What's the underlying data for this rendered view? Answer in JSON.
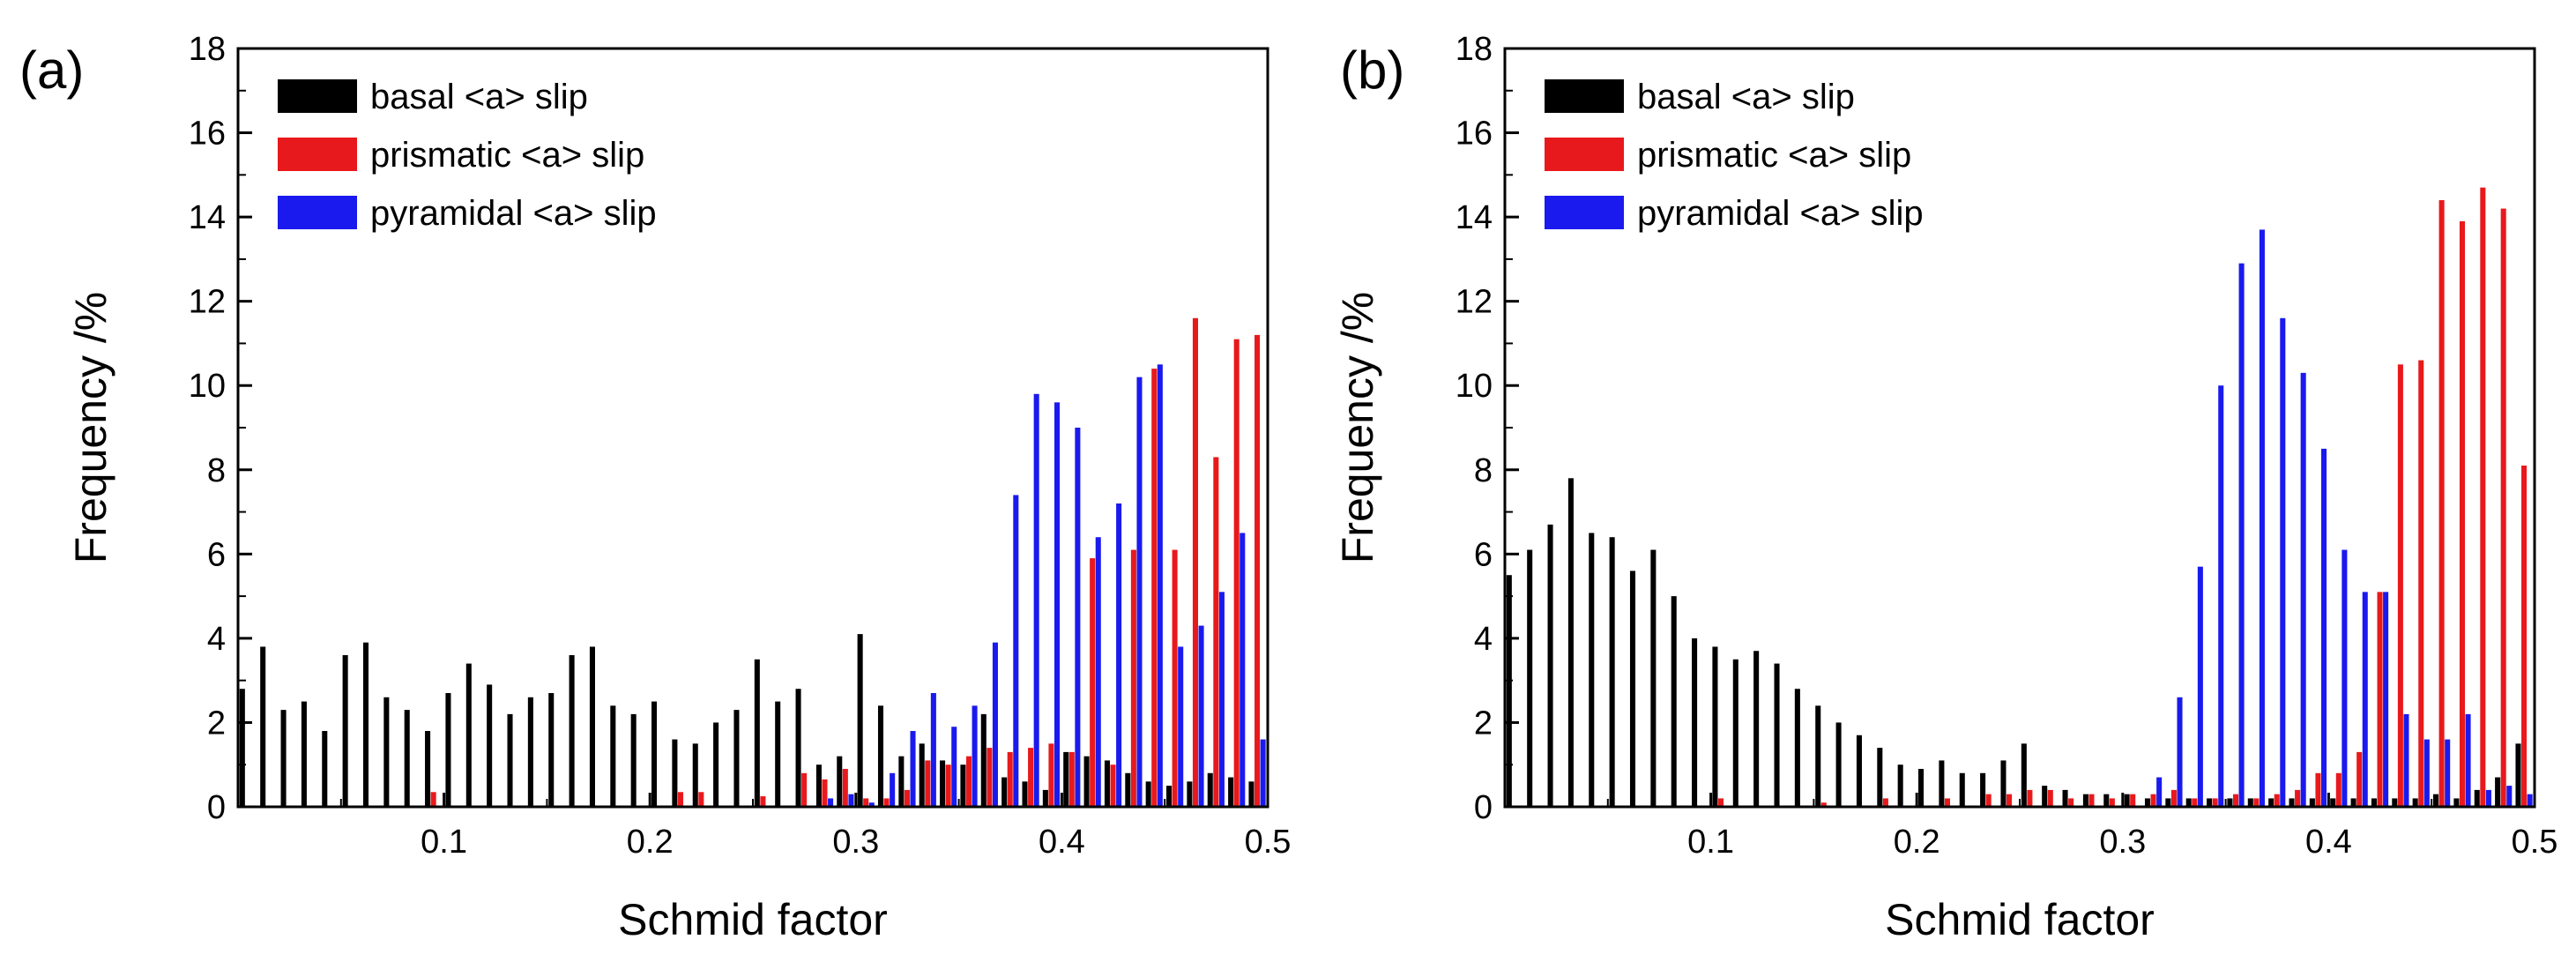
{
  "figure": {
    "panel_labels": [
      "(a)",
      "(b)"
    ]
  },
  "colors": {
    "basal": "#000000",
    "prismatic": "#e8191c",
    "pyramidal": "#1a1aee"
  },
  "chart_data": [
    {
      "type": "bar",
      "panel_label": "(a)",
      "xlabel": "Schmid factor",
      "ylabel": "Frequency /%",
      "xlim": [
        0.0,
        0.5
      ],
      "ylim": [
        0,
        18
      ],
      "xticks": [
        0.1,
        0.2,
        0.3,
        0.4,
        0.5
      ],
      "xtick_labels": [
        "0.1",
        "0.2",
        "0.3",
        "0.4",
        "0.5"
      ],
      "yticks": [
        0,
        2,
        4,
        6,
        8,
        10,
        12,
        14,
        16,
        18
      ],
      "ytick_labels": [
        "0",
        "2",
        "4",
        "6",
        "8",
        "10",
        "12",
        "14",
        "16",
        "18"
      ],
      "bin_width": 0.01,
      "legend": {
        "position": "top-left",
        "entries": [
          "basal <a> slip",
          "prismatic <a> slip",
          "pyramidal <a> slip"
        ]
      },
      "series": [
        {
          "name": "basal <a> slip",
          "color": "#000000",
          "values": [
            2.8,
            3.8,
            2.3,
            2.5,
            1.8,
            3.6,
            3.9,
            2.6,
            2.3,
            1.8,
            2.7,
            3.4,
            2.9,
            2.2,
            2.6,
            2.7,
            3.6,
            3.8,
            2.4,
            2.2,
            2.5,
            1.6,
            1.5,
            2.0,
            2.3,
            3.5,
            2.5,
            2.8,
            1.0,
            1.2,
            4.1,
            2.4,
            1.2,
            1.5,
            1.1,
            1.0,
            2.2,
            0.7,
            0.6,
            0.4,
            1.3,
            1.2,
            1.1,
            0.8,
            0.6,
            0.5,
            0.6,
            0.8,
            0.7,
            0.6
          ]
        },
        {
          "name": "prismatic <a> slip",
          "color": "#e8191c",
          "values": [
            0,
            0,
            0,
            0,
            0,
            0,
            0,
            0,
            0,
            0.35,
            0,
            0,
            0,
            0,
            0,
            0,
            0,
            0,
            0,
            0,
            0,
            0.35,
            0.35,
            0,
            0,
            0.25,
            0,
            0.8,
            0.65,
            0.9,
            0.2,
            0.2,
            0.4,
            1.1,
            1.0,
            1.2,
            1.4,
            1.3,
            1.4,
            1.5,
            1.3,
            5.9,
            1.0,
            6.1,
            10.4,
            6.1,
            11.6,
            8.3,
            11.1,
            11.2
          ]
        },
        {
          "name": "pyramidal <a> slip",
          "color": "#1a1aee",
          "values": [
            0,
            0,
            0,
            0,
            0,
            0,
            0,
            0,
            0,
            0,
            0,
            0,
            0,
            0,
            0,
            0,
            0,
            0,
            0,
            0,
            0,
            0,
            0,
            0,
            0,
            0,
            0,
            0,
            0.2,
            0.3,
            0.1,
            0.8,
            1.8,
            2.7,
            1.9,
            2.4,
            3.9,
            7.4,
            9.8,
            9.6,
            9.0,
            6.4,
            7.2,
            10.2,
            10.5,
            3.8,
            4.3,
            5.1,
            6.5,
            1.6
          ]
        }
      ]
    },
    {
      "type": "bar",
      "panel_label": "(b)",
      "xlabel": "Schmid factor",
      "ylabel": "Frequency /%",
      "xlim": [
        0.0,
        0.5
      ],
      "ylim": [
        0,
        18
      ],
      "xticks": [
        0.1,
        0.2,
        0.3,
        0.4,
        0.5
      ],
      "xtick_labels": [
        "0.1",
        "0.2",
        "0.3",
        "0.4",
        "0.5"
      ],
      "yticks": [
        0,
        2,
        4,
        6,
        8,
        10,
        12,
        14,
        16,
        18
      ],
      "ytick_labels": [
        "0",
        "2",
        "4",
        "6",
        "8",
        "10",
        "12",
        "14",
        "16",
        "18"
      ],
      "bin_width": 0.01,
      "legend": {
        "position": "top-left",
        "entries": [
          "basal <a> slip",
          "prismatic <a> slip",
          "pyramidal <a> slip"
        ]
      },
      "series": [
        {
          "name": "basal <a> slip",
          "color": "#000000",
          "values": [
            5.5,
            6.1,
            6.7,
            7.8,
            6.5,
            6.4,
            5.6,
            6.1,
            5.0,
            4.0,
            3.8,
            3.5,
            3.7,
            3.4,
            2.8,
            2.4,
            2.0,
            1.7,
            1.4,
            1.0,
            0.9,
            1.1,
            0.8,
            0.8,
            1.1,
            1.5,
            0.5,
            0.4,
            0.3,
            0.3,
            0.3,
            0.2,
            0.2,
            0.2,
            0.2,
            0.2,
            0.2,
            0.2,
            0.2,
            0.2,
            0.2,
            0.2,
            0.2,
            0.2,
            0.2,
            0.3,
            0.2,
            0.4,
            0.7,
            1.5
          ]
        },
        {
          "name": "prismatic <a> slip",
          "color": "#e8191c",
          "values": [
            0,
            0,
            0,
            0,
            0,
            0,
            0,
            0,
            0,
            0,
            0.2,
            0,
            0,
            0,
            0,
            0.1,
            0,
            0,
            0.2,
            0,
            0,
            0.2,
            0,
            0.3,
            0.3,
            0.4,
            0.4,
            0.2,
            0.3,
            0.2,
            0.3,
            0.3,
            0.4,
            0.2,
            0.2,
            0.3,
            0.2,
            0.3,
            0.4,
            0.8,
            0.8,
            1.3,
            5.1,
            10.5,
            10.6,
            14.4,
            13.9,
            14.7,
            14.2,
            8.1
          ]
        },
        {
          "name": "pyramidal <a> slip",
          "color": "#1a1aee",
          "values": [
            0,
            0,
            0,
            0,
            0,
            0,
            0,
            0,
            0,
            0,
            0,
            0,
            0,
            0,
            0,
            0,
            0,
            0,
            0,
            0,
            0,
            0,
            0,
            0,
            0,
            0,
            0,
            0,
            0,
            0,
            0,
            0.7,
            2.6,
            5.7,
            10.0,
            12.9,
            13.7,
            11.6,
            10.3,
            8.5,
            6.1,
            5.1,
            5.1,
            2.2,
            1.6,
            1.6,
            2.2,
            0.4,
            0.5,
            0.3
          ]
        }
      ]
    }
  ]
}
